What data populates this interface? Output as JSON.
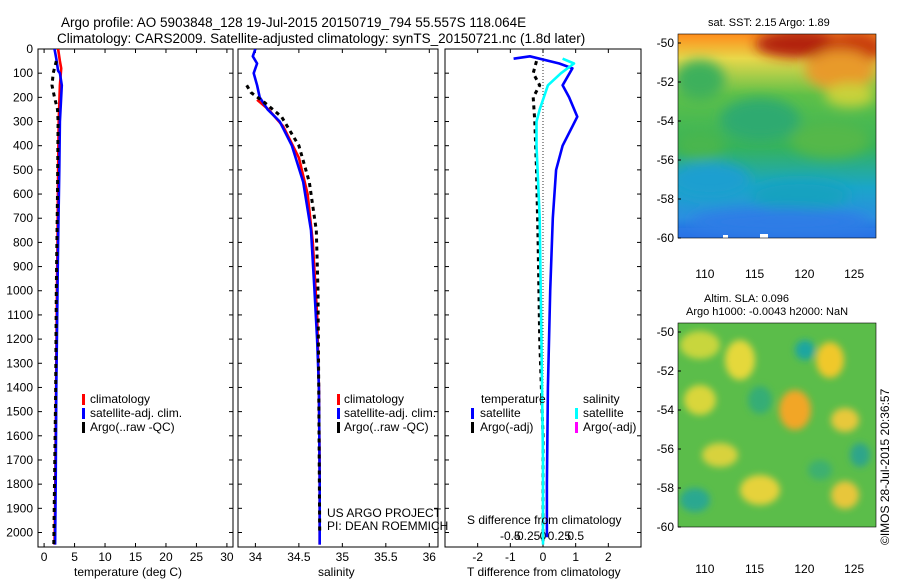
{
  "header": {
    "line1": "Argo profile: AO 5903848_128 19-Jul-2015 20150719_794 55.557S 118.064E",
    "line2": "Climatology: CARS2009. Satellite-adjusted climatology: synTS_20150721.nc (1.8d later)"
  },
  "colors": {
    "clim": "#ff0000",
    "sat": "#0000ff",
    "argo": "#000000",
    "cyan": "#00ffff",
    "magenta": "#ff00ff"
  },
  "yaxis": {
    "ticks": [
      0,
      100,
      200,
      300,
      400,
      500,
      600,
      700,
      800,
      900,
      1000,
      1100,
      1200,
      1300,
      1400,
      1500,
      1600,
      1700,
      1800,
      1900,
      2000
    ],
    "ylim": [
      0,
      2060
    ]
  },
  "legend_profile": {
    "clim": "climatology",
    "sat": "satellite-adj. clim.",
    "argo": "Argo(..raw -QC)"
  },
  "chart_data": [
    {
      "type": "line",
      "id": "temperature",
      "xlabel": "temperature (deg C)",
      "xlim": [
        -1,
        31
      ],
      "xticks": [
        0,
        5,
        10,
        15,
        20,
        25,
        30
      ],
      "series": [
        {
          "name": "climatology",
          "color": "#ff0000",
          "x": [
            2.3,
            2.6,
            2.8,
            2.6,
            2.4,
            2.3,
            2.2,
            2.1,
            2.0,
            1.9,
            1.8,
            1.7
          ],
          "y": [
            0,
            50,
            80,
            150,
            300,
            500,
            800,
            1000,
            1300,
            1600,
            1900,
            2050
          ]
        },
        {
          "name": "satellite-adj. clim.",
          "color": "#0000ff",
          "x": [
            1.7,
            2.0,
            2.3,
            2.6,
            2.9,
            2.6,
            2.5,
            2.3,
            2.2,
            2.0,
            1.9,
            1.8
          ],
          "y": [
            0,
            40,
            90,
            100,
            150,
            300,
            500,
            800,
            1000,
            1400,
            1800,
            2050
          ]
        },
        {
          "name": "Argo(..raw -QC)",
          "color": "#000000",
          "dash": true,
          "x": [
            2.0,
            1.5,
            1.3,
            1.7,
            2.2,
            2.3,
            2.2,
            2.0,
            1.9,
            1.7,
            1.6
          ],
          "y": [
            50,
            100,
            150,
            200,
            250,
            300,
            600,
            1000,
            1400,
            1800,
            2050
          ]
        }
      ]
    },
    {
      "type": "line",
      "id": "salinity",
      "xlabel": "salinity",
      "xlim": [
        33.8,
        36.1
      ],
      "xticks": [
        34,
        34.5,
        35,
        35.5,
        36
      ],
      "xticklabels": [
        "34",
        "34.5",
        "35",
        "35.5",
        "36"
      ],
      "series": [
        {
          "name": "climatology",
          "color": "#ff0000",
          "x": [
            34.02,
            34.15,
            34.32,
            34.5,
            34.6,
            34.66,
            34.71,
            34.73,
            34.74,
            34.74
          ],
          "y": [
            210,
            250,
            320,
            450,
            600,
            800,
            1100,
            1400,
            1800,
            2050
          ]
        },
        {
          "name": "satellite-adj. clim.",
          "color": "#0000ff",
          "x": [
            34.0,
            33.97,
            34.02,
            33.98,
            34.02,
            34.05,
            34.14,
            34.28,
            34.42,
            34.55,
            34.64,
            34.68,
            34.71,
            34.73,
            34.74,
            34.74
          ],
          "y": [
            0,
            30,
            60,
            100,
            150,
            200,
            250,
            300,
            400,
            550,
            750,
            1000,
            1200,
            1400,
            1800,
            2050
          ]
        },
        {
          "name": "Argo(..raw -QC)",
          "color": "#000000",
          "dash": true,
          "x": [
            33.9,
            33.95,
            34.1,
            34.3,
            34.5,
            34.62,
            34.7,
            34.72,
            34.73,
            34.74
          ],
          "y": [
            150,
            180,
            220,
            280,
            400,
            550,
            750,
            1000,
            1500,
            2000
          ]
        }
      ]
    },
    {
      "type": "line",
      "id": "difference",
      "xlabel": "T difference from climatology",
      "xlabel_top": "S difference from climatology",
      "xlim": [
        -3,
        3
      ],
      "xticks": [
        -2,
        -1,
        0,
        1,
        2
      ],
      "xticklabels": [
        "-2",
        "-1",
        "0",
        "1",
        "2"
      ],
      "sticks": [
        -1,
        -0.5,
        0,
        0.5,
        1
      ],
      "sticklabels": [
        "-0.5",
        "-0.25",
        "0",
        "0.25",
        "0.5"
      ],
      "series": [
        {
          "name": "satellite",
          "group": "temperature",
          "color": "#0000ff",
          "x": [
            -0.9,
            -0.4,
            0.5,
            0.9,
            0.6,
            0.8,
            1.05,
            0.9,
            0.6,
            0.4,
            0.3,
            0.22,
            0.15,
            0.12,
            0.12
          ],
          "y": [
            40,
            30,
            60,
            80,
            150,
            200,
            280,
            320,
            400,
            500,
            700,
            1000,
            1400,
            1800,
            2020
          ]
        },
        {
          "name": "Argo(-adj)",
          "group": "temperature",
          "color": "#000000",
          "dash": true,
          "x": [
            -0.2,
            -0.3,
            -0.1,
            -0.3,
            -0.25,
            -0.2,
            -0.15,
            -0.1,
            0.0,
            0.0
          ],
          "y": [
            50,
            100,
            150,
            200,
            300,
            500,
            800,
            1200,
            1600,
            2050
          ]
        },
        {
          "name": "satellite",
          "group": "salinity",
          "color": "#00ffff",
          "x": [
            0.6,
            0.95,
            0.55,
            0.15,
            -0.1,
            -0.2,
            -0.2,
            -0.1,
            -0.05,
            0.0,
            0.0
          ],
          "y": [
            40,
            60,
            100,
            150,
            250,
            300,
            400,
            700,
            1200,
            1700,
            2050
          ]
        }
      ]
    }
  ],
  "legend_diff": {
    "temperature_title": "temperature",
    "salinity_title": "salinity",
    "t_sat": "satellite",
    "t_argo": "Argo(-adj)",
    "s_sat": "satellite",
    "s_argo": "Argo(-adj)"
  },
  "credit": {
    "line1": "US ARGO PROJECT",
    "line2": "PI: DEAN ROEMMICH"
  },
  "map_sst": {
    "title": "sat. SST: 2.15 Argo: 1.89",
    "yticks": [
      -50,
      -52,
      -54,
      -56,
      -58,
      -60
    ],
    "xticks": [
      110,
      115,
      120,
      125
    ]
  },
  "map_sla": {
    "title1": "Altim. SLA: 0.096",
    "title2": "Argo h1000: -0.0043 h2000: NaN",
    "yticks": [
      -50,
      -52,
      -54,
      -56,
      -58,
      -60
    ],
    "xticks": [
      110,
      115,
      120,
      125
    ]
  },
  "watermark": "©IMOS 28-Jul-2015 20:36:57"
}
